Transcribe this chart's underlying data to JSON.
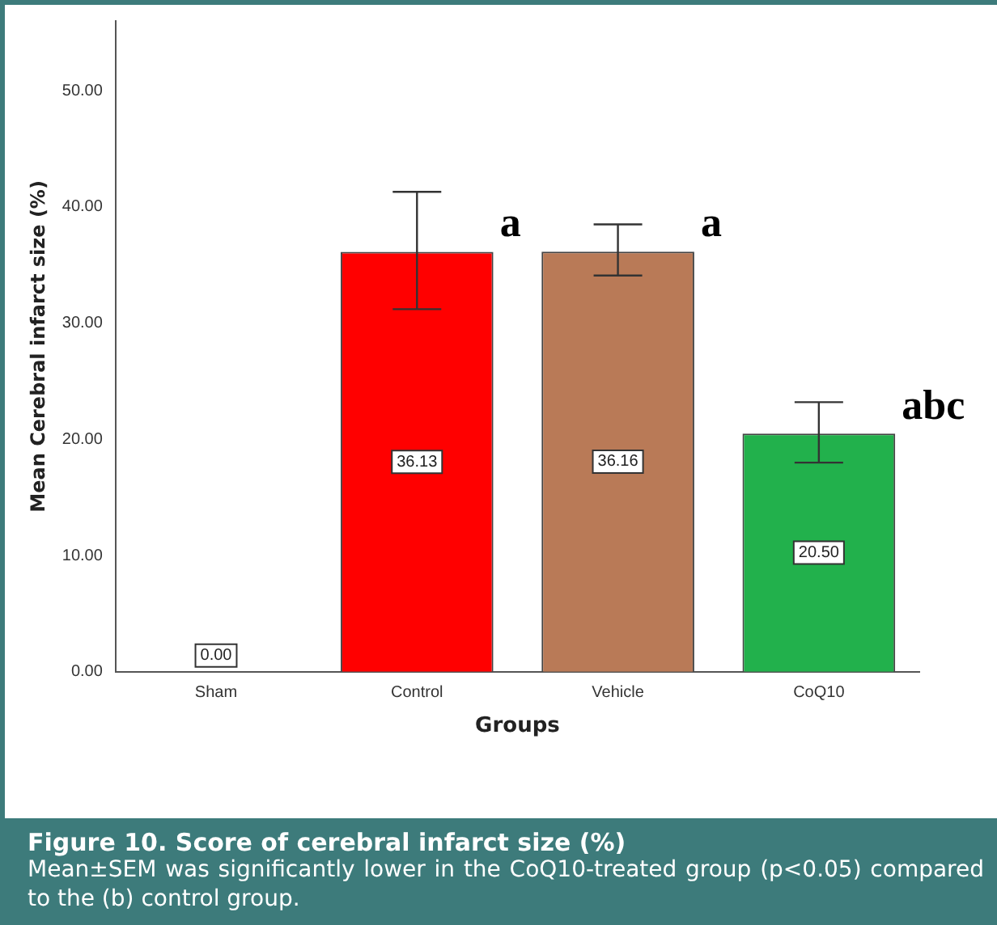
{
  "chart_data": {
    "type": "bar",
    "title": "Figure 10. Score of cerebral infarct size (%)",
    "subtitle": "Mean±SEM was significantly lower in the CoQ10-treated group (p<0.05) compared to the (b) control group.",
    "xlabel": "Groups",
    "ylabel": "Mean Cerebral infarct size (%)",
    "categories": [
      "Sham",
      "Control",
      "Vehicle",
      "CoQ10"
    ],
    "values": [
      0,
      36.13,
      36.16,
      20.5
    ],
    "colors": [
      "#d9d9d9",
      "#ff0000",
      "#b97a57",
      "#22b14c"
    ],
    "errors": [
      null,
      [
        31.2,
        41.3
      ],
      [
        34.1,
        38.5
      ],
      [
        18.0,
        23.2
      ]
    ],
    "value_labels": [
      "0.00",
      "36.13",
      "36.16",
      "20.50"
    ],
    "ylim": [
      0,
      56
    ],
    "yticks": [
      {
        "value": 0,
        "label": "0.00"
      },
      {
        "value": 10,
        "label": "10.00"
      },
      {
        "value": 20,
        "label": "20.00"
      },
      {
        "value": 30,
        "label": "30.00"
      },
      {
        "value": 40,
        "label": "40.00"
      },
      {
        "value": 50,
        "label": "50.00"
      }
    ],
    "annotations": [
      {
        "text": "a",
        "x": "Control",
        "y": 38.4
      },
      {
        "text": "a",
        "x": "Vehicle",
        "y": 38.4
      },
      {
        "text": "abc",
        "x": "CoQ10",
        "y": 22.7
      }
    ],
    "grid": false,
    "legend": false
  }
}
